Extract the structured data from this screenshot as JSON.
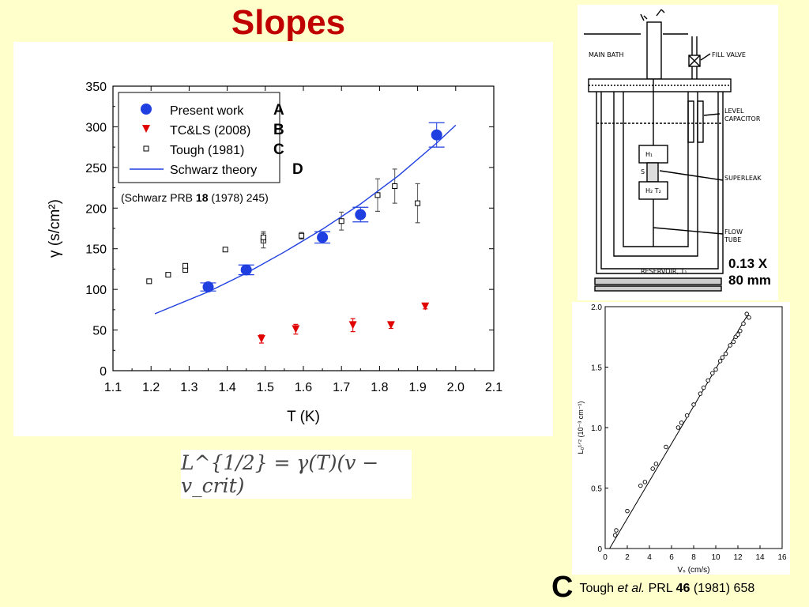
{
  "slide": {
    "title": "Slopes",
    "formula": "L^{1/2} = γ(T)(v − v_crit)",
    "scale_label_line1": "0.13 X",
    "scale_label_line2": "80 mm",
    "caption": {
      "letter": "C",
      "author": "Tough ",
      "etal": "et al.",
      "journal": " PRL ",
      "volume": "46",
      "rest": " (1981) 658"
    }
  },
  "colors": {
    "title": "#c00000",
    "background": "#ffffcc",
    "present_work": "#1f3fe0",
    "tcls": "#e00000",
    "theory": "#1f3fe0"
  },
  "chart_data": [
    {
      "type": "scatter",
      "xlabel": "T (K)",
      "ylabel": "γ (s/cm²)",
      "xlim": [
        1.1,
        2.1
      ],
      "ylim": [
        0,
        350
      ],
      "x_ticks": [
        "1.1",
        "1.2",
        "1.3",
        "1.4",
        "1.5",
        "1.6",
        "1.7",
        "1.8",
        "1.9",
        "2.0",
        "2.1"
      ],
      "y_ticks": [
        "0",
        "50",
        "100",
        "150",
        "200",
        "250",
        "300",
        "350"
      ],
      "legend_position": "top-left",
      "annotation": {
        "prefix": "(Schwarz PRB ",
        "bold": "18",
        "suffix": " (1978) 245)"
      },
      "series": [
        {
          "name": "Present work",
          "tag": "A",
          "marker": "circle",
          "points": [
            [
              1.35,
              103,
              5
            ],
            [
              1.45,
              124,
              6
            ],
            [
              1.65,
              164,
              7
            ],
            [
              1.75,
              192,
              9
            ],
            [
              1.95,
              290,
              15
            ]
          ]
        },
        {
          "name": "TC&LS (2008)",
          "tag": "B",
          "marker": "triangle",
          "points": [
            [
              1.49,
              39,
              5
            ],
            [
              1.58,
              51,
              6
            ],
            [
              1.73,
              56,
              8
            ],
            [
              1.83,
              56,
              4
            ],
            [
              1.92,
              79,
              3
            ]
          ]
        },
        {
          "name": "Tough (1981)",
          "tag": "C",
          "marker": "square",
          "points": [
            [
              1.195,
              110,
              0
            ],
            [
              1.245,
              118,
              0
            ],
            [
              1.29,
              124,
              0
            ],
            [
              1.29,
              129,
              0
            ],
            [
              1.395,
              149,
              0
            ],
            [
              1.495,
              160,
              9
            ],
            [
              1.495,
              164,
              7
            ],
            [
              1.595,
              166,
              4
            ],
            [
              1.7,
              184,
              11
            ],
            [
              1.795,
              216,
              20
            ],
            [
              1.84,
              227,
              21
            ],
            [
              1.9,
              206,
              24
            ]
          ]
        },
        {
          "name": "Schwarz theory",
          "tag": "D",
          "marker": "line",
          "points": [
            [
              1.21,
              70
            ],
            [
              1.35,
              97
            ],
            [
              1.45,
              120
            ],
            [
              1.55,
              146
            ],
            [
              1.65,
              174
            ],
            [
              1.75,
              205
            ],
            [
              1.85,
              240
            ],
            [
              1.95,
              280
            ],
            [
              2.0,
              302
            ]
          ]
        }
      ]
    },
    {
      "type": "scatter",
      "xlabel": "Vₛ (cm/s)",
      "ylabel": "L₀¹ᐟ² (10⁻³ cm⁻¹)",
      "xlim": [
        0,
        16
      ],
      "ylim": [
        0,
        2.0
      ],
      "x_ticks": [
        "0",
        "2",
        "4",
        "6",
        "8",
        "10",
        "12",
        "14",
        "16"
      ],
      "y_ticks": [
        "0",
        "0.5",
        "1.0",
        "1.5",
        "2.0"
      ],
      "fit_line": [
        [
          0.4,
          0
        ],
        [
          12.8,
          1.92
        ]
      ],
      "points": [
        [
          0.9,
          0.11
        ],
        [
          1.0,
          0.15
        ],
        [
          2.0,
          0.31
        ],
        [
          3.2,
          0.52
        ],
        [
          3.6,
          0.55
        ],
        [
          4.3,
          0.66
        ],
        [
          4.6,
          0.7
        ],
        [
          5.5,
          0.84
        ],
        [
          6.6,
          1.0
        ],
        [
          6.9,
          1.04
        ],
        [
          7.4,
          1.1
        ],
        [
          8.0,
          1.19
        ],
        [
          8.6,
          1.28
        ],
        [
          8.9,
          1.33
        ],
        [
          9.3,
          1.39
        ],
        [
          9.7,
          1.45
        ],
        [
          10.0,
          1.48
        ],
        [
          10.4,
          1.55
        ],
        [
          10.6,
          1.58
        ],
        [
          10.9,
          1.61
        ],
        [
          11.3,
          1.68
        ],
        [
          11.6,
          1.71
        ],
        [
          11.8,
          1.75
        ],
        [
          12.0,
          1.77
        ],
        [
          12.2,
          1.8
        ],
        [
          12.5,
          1.86
        ],
        [
          12.8,
          1.94
        ],
        [
          13.0,
          1.91
        ]
      ]
    }
  ],
  "apparatus": {
    "labels": [
      "MAIN BATH",
      "FILL VALVE",
      "LEVEL",
      "CAPACITOR",
      "SUPERLEAK",
      "FLOW",
      "TUBE",
      "RESERVOIR, T₁",
      "H₁",
      "S",
      "H₂  T₂"
    ]
  }
}
